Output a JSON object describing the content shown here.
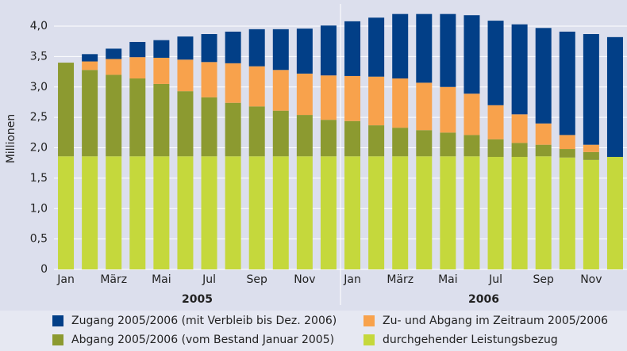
{
  "chart_data": {
    "type": "stacked_bar",
    "y_axis_label": "Millionen",
    "categories": [
      "Jan",
      null,
      "März",
      null,
      "Mai",
      null,
      "Jul",
      null,
      "Sep",
      null,
      "Nov",
      null,
      "Jan",
      null,
      "März",
      null,
      "Mai",
      null,
      "Jul",
      null,
      "Sep",
      null,
      "Nov",
      null
    ],
    "group_labels": [
      "2005",
      "2006"
    ],
    "ylim": [
      0,
      4.3
    ],
    "yticks": [
      0,
      {
        "value": 0.5,
        "label": "0,5"
      },
      {
        "value": 1,
        "label": "1,0"
      },
      {
        "value": 1.5,
        "label": "1,5"
      },
      {
        "value": 2,
        "label": "2,0"
      },
      {
        "value": 2.5,
        "label": "2,5"
      },
      {
        "value": 3,
        "label": "3,0"
      },
      {
        "value": 3.5,
        "label": "3,5"
      },
      {
        "value": 4,
        "label": "4,0"
      }
    ],
    "grid": true,
    "series": [
      {
        "name": "durchgehender Leistungsbezug",
        "color": "#c5d83c",
        "values": [
          1.86,
          1.86,
          1.86,
          1.86,
          1.86,
          1.86,
          1.86,
          1.86,
          1.86,
          1.86,
          1.86,
          1.86,
          1.86,
          1.86,
          1.86,
          1.86,
          1.86,
          1.86,
          1.85,
          1.85,
          1.86,
          1.84,
          1.8,
          1.85
        ]
      },
      {
        "name": "Abgang 2005/2006 (vom Bestand Januar 2005)",
        "color": "#8c9a30",
        "values": [
          1.54,
          1.42,
          1.34,
          1.28,
          1.19,
          1.07,
          0.97,
          0.88,
          0.82,
          0.75,
          0.68,
          0.6,
          0.58,
          0.51,
          0.47,
          0.43,
          0.39,
          0.35,
          0.29,
          0.23,
          0.19,
          0.14,
          0.13,
          0
        ]
      },
      {
        "name": "Zu- und Abgang im Zeitraum 2005/2006",
        "color": "#f8a24c",
        "values": [
          0,
          0.14,
          0.26,
          0.35,
          0.43,
          0.52,
          0.58,
          0.65,
          0.66,
          0.67,
          0.68,
          0.73,
          0.74,
          0.8,
          0.81,
          0.78,
          0.75,
          0.68,
          0.56,
          0.47,
          0.35,
          0.23,
          0.12,
          0
        ]
      },
      {
        "name": "Zugang 2005/2006 (mit Verbleib bis Dez. 2006)",
        "color": "#023f87",
        "values": [
          0,
          0.12,
          0.17,
          0.25,
          0.29,
          0.38,
          0.46,
          0.52,
          0.61,
          0.67,
          0.74,
          0.82,
          0.9,
          0.97,
          1.06,
          1.13,
          1.2,
          1.29,
          1.39,
          1.48,
          1.57,
          1.7,
          1.82,
          1.97
        ]
      }
    ]
  }
}
